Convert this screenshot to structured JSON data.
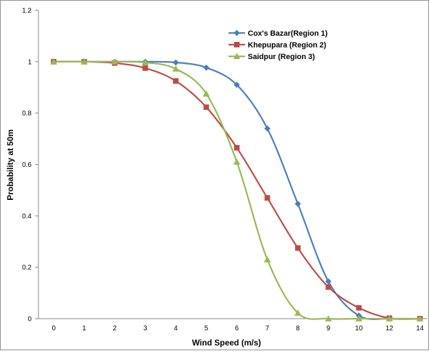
{
  "chart_data": {
    "type": "line",
    "title": "",
    "xlabel": "Wind Speed (m/s)",
    "ylabel": "Probability at 50m",
    "x_categories": [
      "0",
      "1",
      "2",
      "3",
      "4",
      "5",
      "6",
      "7",
      "8",
      "9",
      "10",
      "12",
      "14"
    ],
    "ylim": [
      0,
      1.2
    ],
    "y_ticks": [
      "0",
      "0.2",
      "0.4",
      "0.6",
      "0.8",
      "1",
      "1.2"
    ],
    "grid": false,
    "legend_position": "top-right",
    "series": [
      {
        "name": "Cox's Bazar(Region 1)",
        "color": "#4a7ebb",
        "marker": "diamond",
        "values": [
          1,
          1,
          1,
          1,
          0.997,
          0.977,
          0.91,
          0.74,
          0.447,
          0.145,
          0.012,
          0,
          0
        ]
      },
      {
        "name": "Khepupara (Region 2)",
        "color": "#be4b48",
        "marker": "square",
        "values": [
          1,
          1,
          0.995,
          0.975,
          0.925,
          0.823,
          0.665,
          0.47,
          0.275,
          0.123,
          0.042,
          0.002,
          0
        ]
      },
      {
        "name": "Saidpur (Region 3)",
        "color": "#98b954",
        "marker": "triangle",
        "values": [
          1,
          1,
          1,
          0.997,
          0.972,
          0.875,
          0.61,
          0.23,
          0.022,
          0,
          0,
          0,
          0
        ]
      }
    ]
  }
}
